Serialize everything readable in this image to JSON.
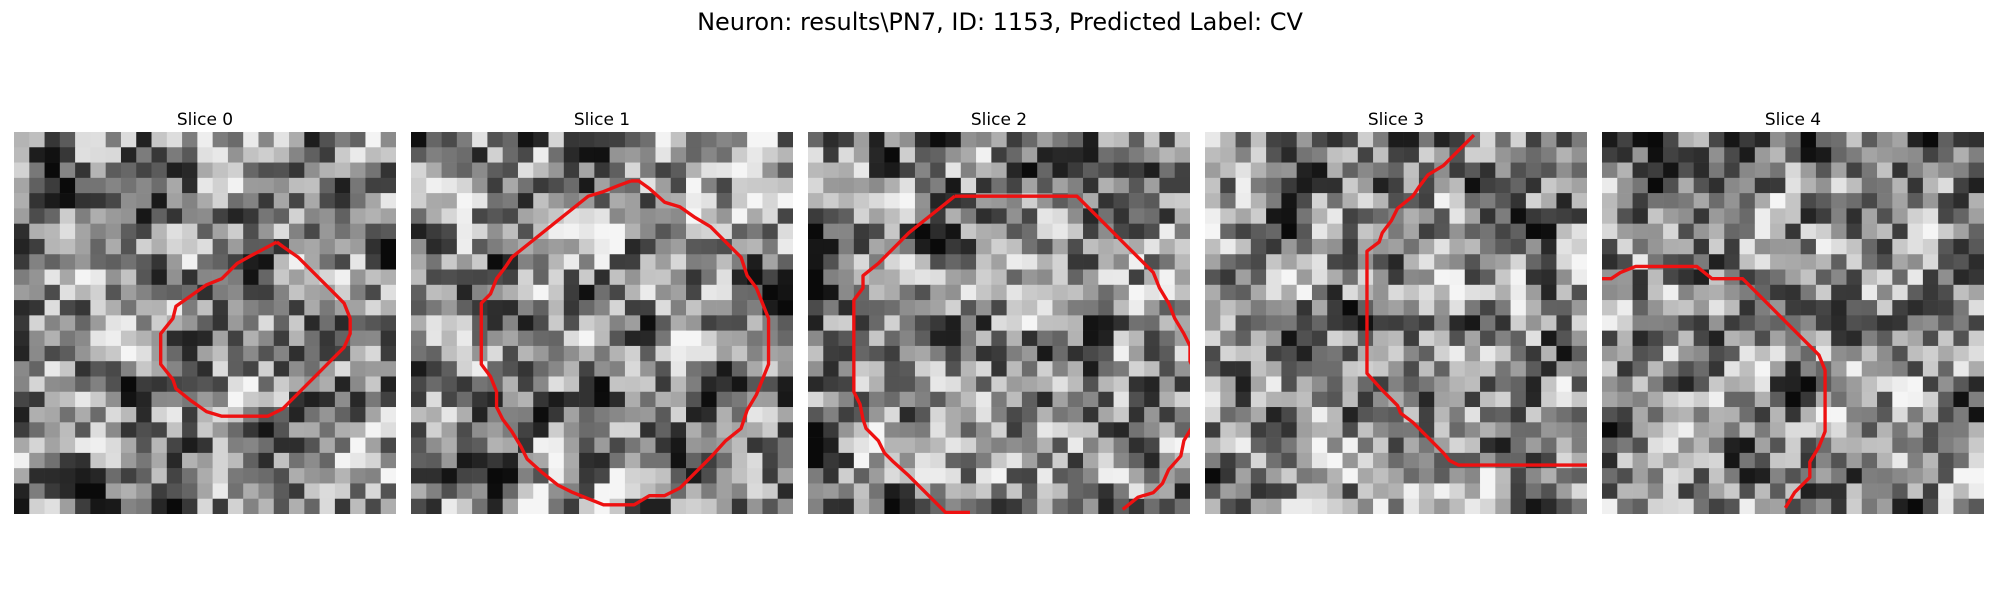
{
  "figure": {
    "title": "Neuron: results\\PN7, ID: 1153, Predicted Label: CV",
    "contour_color": "#ee1111"
  },
  "slices": [
    {
      "title": "Slice 0",
      "contour": [
        [
          17.2,
          7.2
        ],
        [
          15.5,
          8.1
        ],
        [
          14.6,
          8.6
        ],
        [
          13.6,
          9.6
        ],
        [
          12.6,
          10.0
        ],
        [
          11.6,
          10.7
        ],
        [
          10.6,
          11.4
        ],
        [
          10.4,
          12.2
        ],
        [
          9.6,
          13.2
        ],
        [
          9.6,
          14.2
        ],
        [
          9.6,
          15.2
        ],
        [
          10.4,
          16.2
        ],
        [
          10.6,
          16.8
        ],
        [
          11.6,
          17.6
        ],
        [
          12.6,
          18.3
        ],
        [
          13.6,
          18.6
        ],
        [
          14.6,
          18.6
        ],
        [
          15.6,
          18.6
        ],
        [
          16.6,
          18.6
        ],
        [
          17.6,
          18.1
        ],
        [
          18.6,
          17.1
        ],
        [
          19.6,
          16.1
        ],
        [
          20.6,
          15.1
        ],
        [
          21.6,
          14.1
        ],
        [
          22.0,
          13.2
        ],
        [
          22.0,
          12.2
        ],
        [
          21.6,
          11.2
        ],
        [
          20.6,
          10.2
        ],
        [
          19.6,
          9.2
        ],
        [
          18.6,
          8.2
        ],
        [
          17.6,
          7.5
        ],
        [
          17.2,
          7.2
        ]
      ]
    },
    {
      "title": "Slice 1",
      "contour": [
        [
          14.4,
          3.2
        ],
        [
          13.6,
          3.5
        ],
        [
          12.6,
          3.9
        ],
        [
          11.6,
          4.2
        ],
        [
          10.6,
          5.0
        ],
        [
          9.6,
          5.8
        ],
        [
          8.6,
          6.6
        ],
        [
          7.6,
          7.4
        ],
        [
          6.6,
          8.2
        ],
        [
          6.2,
          8.8
        ],
        [
          5.6,
          9.6
        ],
        [
          5.2,
          10.6
        ],
        [
          4.6,
          11.2
        ],
        [
          4.6,
          12.2
        ],
        [
          4.6,
          13.2
        ],
        [
          4.6,
          14.2
        ],
        [
          4.6,
          15.2
        ],
        [
          5.2,
          16.0
        ],
        [
          5.6,
          17.0
        ],
        [
          5.6,
          18.0
        ],
        [
          6.0,
          18.8
        ],
        [
          6.6,
          19.6
        ],
        [
          7.2,
          20.6
        ],
        [
          7.6,
          21.4
        ],
        [
          8.6,
          22.3
        ],
        [
          9.6,
          23.1
        ],
        [
          10.6,
          23.6
        ],
        [
          11.6,
          24.0
        ],
        [
          12.6,
          24.4
        ],
        [
          13.6,
          24.4
        ],
        [
          14.6,
          24.4
        ],
        [
          15.6,
          23.8
        ],
        [
          16.6,
          23.8
        ],
        [
          17.6,
          23.3
        ],
        [
          18.6,
          22.3
        ],
        [
          19.6,
          21.3
        ],
        [
          20.6,
          20.2
        ],
        [
          21.6,
          19.4
        ],
        [
          22.0,
          18.2
        ],
        [
          22.6,
          17.2
        ],
        [
          23.0,
          16.2
        ],
        [
          23.4,
          15.2
        ],
        [
          23.4,
          14.2
        ],
        [
          23.4,
          13.2
        ],
        [
          23.4,
          12.2
        ],
        [
          23.0,
          11.2
        ],
        [
          22.6,
          10.2
        ],
        [
          22.0,
          9.4
        ],
        [
          21.6,
          8.2
        ],
        [
          20.6,
          7.2
        ],
        [
          19.6,
          6.2
        ],
        [
          18.6,
          5.6
        ],
        [
          17.6,
          4.9
        ],
        [
          16.6,
          4.6
        ],
        [
          15.6,
          3.7
        ],
        [
          14.9,
          3.2
        ],
        [
          14.4,
          3.2
        ]
      ]
    },
    {
      "title": "Slice 2",
      "contour": [
        [
          9.6,
          4.2
        ],
        [
          8.6,
          5.0
        ],
        [
          7.6,
          5.8
        ],
        [
          6.6,
          6.6
        ],
        [
          5.6,
          7.6
        ],
        [
          4.6,
          8.6
        ],
        [
          3.6,
          9.4
        ],
        [
          3.6,
          10.2
        ],
        [
          3.0,
          11.0
        ],
        [
          3.0,
          12.0
        ],
        [
          3.0,
          13.0
        ],
        [
          3.0,
          14.0
        ],
        [
          3.0,
          15.0
        ],
        [
          3.0,
          16.0
        ],
        [
          3.0,
          17.0
        ],
        [
          3.4,
          17.8
        ],
        [
          3.6,
          18.8
        ],
        [
          3.8,
          19.4
        ],
        [
          4.6,
          20.2
        ],
        [
          5.0,
          21.0
        ],
        [
          5.6,
          21.6
        ],
        [
          6.6,
          22.5
        ],
        [
          7.6,
          23.5
        ],
        [
          8.6,
          24.5
        ],
        [
          9.0,
          24.9
        ],
        [
          10.6,
          24.9
        ]
      ],
      "contour_b": [
        [
          25.0,
          14.0
        ],
        [
          25.0,
          15.0
        ],
        [
          25.4,
          15.8
        ],
        [
          25.4,
          16.8
        ],
        [
          25.6,
          17.5
        ],
        [
          25.4,
          18.4
        ],
        [
          25.2,
          19.2
        ],
        [
          24.6,
          20.2
        ],
        [
          24.4,
          21.2
        ],
        [
          23.6,
          22.1
        ],
        [
          23.2,
          23.0
        ],
        [
          22.6,
          23.6
        ],
        [
          21.6,
          23.9
        ],
        [
          20.6,
          24.7
        ]
      ],
      "contour_c": [
        [
          9.6,
          4.2
        ],
        [
          10.6,
          4.2
        ],
        [
          11.6,
          4.2
        ],
        [
          12.6,
          4.2
        ],
        [
          13.6,
          4.2
        ],
        [
          14.6,
          4.2
        ],
        [
          15.6,
          4.2
        ],
        [
          16.6,
          4.2
        ],
        [
          17.6,
          4.2
        ],
        [
          18.6,
          5.2
        ],
        [
          19.6,
          6.2
        ],
        [
          20.6,
          7.2
        ],
        [
          21.6,
          8.2
        ],
        [
          22.6,
          9.2
        ],
        [
          23.0,
          10.2
        ],
        [
          23.6,
          11.2
        ],
        [
          24.0,
          12.2
        ],
        [
          24.6,
          13.2
        ],
        [
          25.0,
          14.0
        ]
      ]
    },
    {
      "title": "Slice 3",
      "contour": [
        [
          17.6,
          0.2
        ],
        [
          16.6,
          1.2
        ],
        [
          15.6,
          2.2
        ],
        [
          14.6,
          2.8
        ],
        [
          14.0,
          3.6
        ],
        [
          13.6,
          4.2
        ],
        [
          12.6,
          5.0
        ],
        [
          12.2,
          5.8
        ],
        [
          11.6,
          6.6
        ],
        [
          11.4,
          7.2
        ],
        [
          10.6,
          7.8
        ],
        [
          10.6,
          8.8
        ],
        [
          10.6,
          9.8
        ],
        [
          10.6,
          10.8
        ],
        [
          10.6,
          11.8
        ],
        [
          10.6,
          12.8
        ],
        [
          10.6,
          13.8
        ],
        [
          10.6,
          14.8
        ],
        [
          10.6,
          15.8
        ],
        [
          11.6,
          16.9
        ],
        [
          12.6,
          17.9
        ],
        [
          12.8,
          18.4
        ],
        [
          13.6,
          19.0
        ],
        [
          14.6,
          20.0
        ],
        [
          15.6,
          21.0
        ],
        [
          16.0,
          21.5
        ],
        [
          16.6,
          21.8
        ],
        [
          17.6,
          21.8
        ],
        [
          18.6,
          21.8
        ],
        [
          19.6,
          21.8
        ],
        [
          20.6,
          21.8
        ],
        [
          21.6,
          21.8
        ],
        [
          22.6,
          21.8
        ],
        [
          23.6,
          21.8
        ],
        [
          24.6,
          21.8
        ],
        [
          25.0,
          21.8
        ]
      ]
    },
    {
      "title": "Slice 4",
      "contour": [
        [
          0.0,
          9.6
        ],
        [
          0.6,
          9.6
        ],
        [
          1.2,
          9.2
        ],
        [
          2.2,
          8.8
        ],
        [
          3.2,
          8.8
        ],
        [
          4.2,
          8.8
        ],
        [
          5.2,
          8.8
        ],
        [
          6.2,
          8.8
        ],
        [
          7.2,
          9.6
        ],
        [
          8.2,
          9.6
        ],
        [
          9.2,
          9.6
        ],
        [
          10.2,
          10.6
        ],
        [
          11.2,
          11.6
        ],
        [
          12.2,
          12.6
        ],
        [
          13.2,
          13.6
        ],
        [
          14.2,
          14.6
        ],
        [
          14.6,
          15.6
        ],
        [
          14.6,
          16.6
        ],
        [
          14.6,
          17.6
        ],
        [
          14.6,
          18.6
        ],
        [
          14.6,
          19.6
        ],
        [
          14.2,
          20.6
        ],
        [
          13.6,
          21.6
        ],
        [
          13.6,
          22.6
        ],
        [
          12.6,
          23.6
        ],
        [
          12.0,
          24.6
        ]
      ]
    }
  ]
}
